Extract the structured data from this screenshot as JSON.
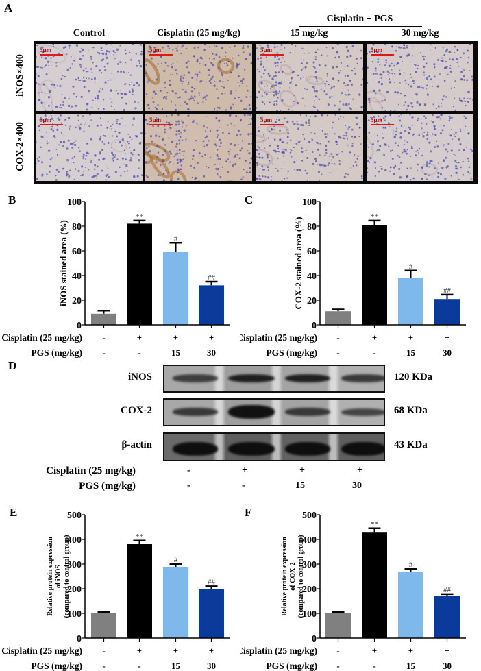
{
  "panels": {
    "A": {
      "letter": "A",
      "group_header": "Cisplatin + PGS",
      "columns": [
        "Control",
        "Cisplatin (25 mg/kg)",
        "15 mg/kg",
        "30 mg/kg"
      ],
      "rows": [
        "iNOS×400",
        "COX-2×400"
      ],
      "scale_label": "5μm",
      "stain_levels": [
        [
          0.05,
          0.85,
          0.3,
          0.2
        ],
        [
          0.05,
          0.75,
          0.3,
          0.15
        ]
      ]
    },
    "B": {
      "letter": "B"
    },
    "C": {
      "letter": "C"
    },
    "D": {
      "letter": "D",
      "blots": [
        {
          "name": "iNOS",
          "kda": "120 KDa",
          "intensity": [
            0.55,
            0.85,
            0.85,
            0.6
          ]
        },
        {
          "name": "COX-2",
          "kda": "68 KDa",
          "intensity": [
            0.6,
            1.0,
            0.6,
            0.5
          ]
        },
        {
          "name": "β-actin",
          "kda": "43 KDa",
          "intensity": [
            1.0,
            1.0,
            1.0,
            1.0
          ]
        }
      ],
      "cisplatin_label": "Cisplatin (25 mg/kg)",
      "pgs_label": "PGS (mg/kg)",
      "cisplatin_values": [
        "-",
        "+",
        "+",
        "+"
      ],
      "pgs_values": [
        "-",
        "-",
        "15",
        "30"
      ]
    },
    "E": {
      "letter": "E"
    },
    "F": {
      "letter": "F"
    }
  },
  "conditions": {
    "cisplatin_label": "Cisplatin (25 mg/kg)",
    "pgs_label": "PGS (mg/kg)",
    "cisplatin_values": [
      "-",
      "+",
      "+",
      "+"
    ],
    "pgs_values": [
      "-",
      "-",
      "15",
      "30"
    ]
  },
  "colors": {
    "control": "#808080",
    "cisplatin": "#000000",
    "pgs15": "#7fb8ea",
    "pgs30": "#0a3a9a"
  },
  "chart_data": [
    {
      "panel": "B",
      "type": "bar",
      "title": "",
      "xlabel": "",
      "ylabel": "iNOS stained area (%)",
      "categories": [
        "Control",
        "Cisplatin",
        "Cisplatin + PGS 15",
        "Cisplatin + PGS 30"
      ],
      "values": [
        9,
        82,
        59,
        32
      ],
      "errors": [
        2.5,
        2.5,
        7.5,
        3
      ],
      "annotations": [
        "",
        "**",
        "#",
        "##"
      ],
      "yticks": [
        0,
        20,
        40,
        60,
        80,
        100
      ],
      "ylim": [
        0,
        100
      ],
      "grid": false
    },
    {
      "panel": "C",
      "type": "bar",
      "title": "",
      "xlabel": "",
      "ylabel": "COX-2 stained area (%)",
      "categories": [
        "Control",
        "Cisplatin",
        "Cisplatin + PGS 15",
        "Cisplatin + PGS 30"
      ],
      "values": [
        11,
        81,
        38,
        21
      ],
      "errors": [
        1.5,
        3.5,
        6,
        3.5
      ],
      "annotations": [
        "",
        "**",
        "#",
        "##"
      ],
      "yticks": [
        0,
        20,
        40,
        60,
        80,
        100
      ],
      "ylim": [
        0,
        100
      ],
      "grid": false
    },
    {
      "panel": "E",
      "type": "bar",
      "title": "",
      "xlabel": "",
      "ylabel": "Relative protein expression of iNOS (compared to control group)",
      "ylabel_lines": [
        "Relative protein expression",
        "of   iNOS",
        "(compared to control group)"
      ],
      "categories": [
        "Control",
        "Cisplatin",
        "Cisplatin + PGS 15",
        "Cisplatin + PGS 30"
      ],
      "values": [
        102,
        381,
        289,
        199
      ],
      "errors": [
        4,
        14,
        11,
        11
      ],
      "annotations": [
        "",
        "**",
        "#",
        "##"
      ],
      "yticks": [
        0,
        100,
        200,
        300,
        400,
        500
      ],
      "ylim": [
        0,
        500
      ],
      "grid": false
    },
    {
      "panel": "F",
      "type": "bar",
      "title": "",
      "xlabel": "",
      "ylabel": "Relative protein expression of COX-2 (compared to control group)",
      "ylabel_lines": [
        "Relative protein expression",
        "of   COX-2",
        "(compared to control group)"
      ],
      "categories": [
        "Control",
        "Cisplatin",
        "Cisplatin + PGS 15",
        "Cisplatin + PGS 30"
      ],
      "values": [
        102,
        430,
        269,
        170
      ],
      "errors": [
        4,
        15,
        12,
        8
      ],
      "annotations": [
        "",
        "**",
        "#",
        "##"
      ],
      "yticks": [
        0,
        100,
        200,
        300,
        400,
        500
      ],
      "ylim": [
        0,
        500
      ],
      "grid": false
    }
  ]
}
